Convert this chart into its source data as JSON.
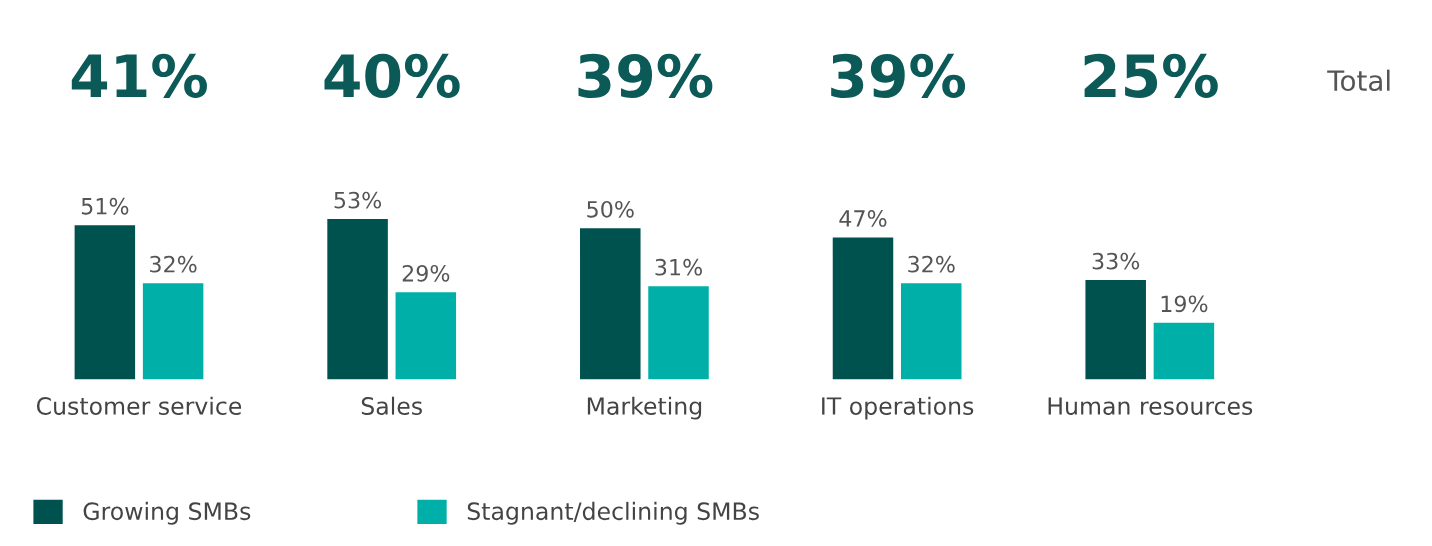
{
  "chart_data": {
    "type": "bar",
    "categories": [
      "Customer service",
      "Sales",
      "Marketing",
      "IT operations",
      "Human resources"
    ],
    "series": [
      {
        "name": "Growing SMBs",
        "color": "#00524f",
        "values": [
          51,
          53,
          50,
          47,
          33
        ],
        "value_labels": [
          "51%",
          "53%",
          "50%",
          "47%",
          "33%"
        ]
      },
      {
        "name": "Stagnant/declining SMBs",
        "color": "#00b0a8",
        "values": [
          32,
          29,
          31,
          32,
          19
        ],
        "value_labels": [
          "32%",
          "29%",
          "31%",
          "32%",
          "19%"
        ]
      }
    ],
    "annotations": [
      "41%",
      "40%",
      "39%",
      "39%",
      "25%",
      "Total"
    ],
    "legend": "bottom left",
    "grid": false
  }
}
